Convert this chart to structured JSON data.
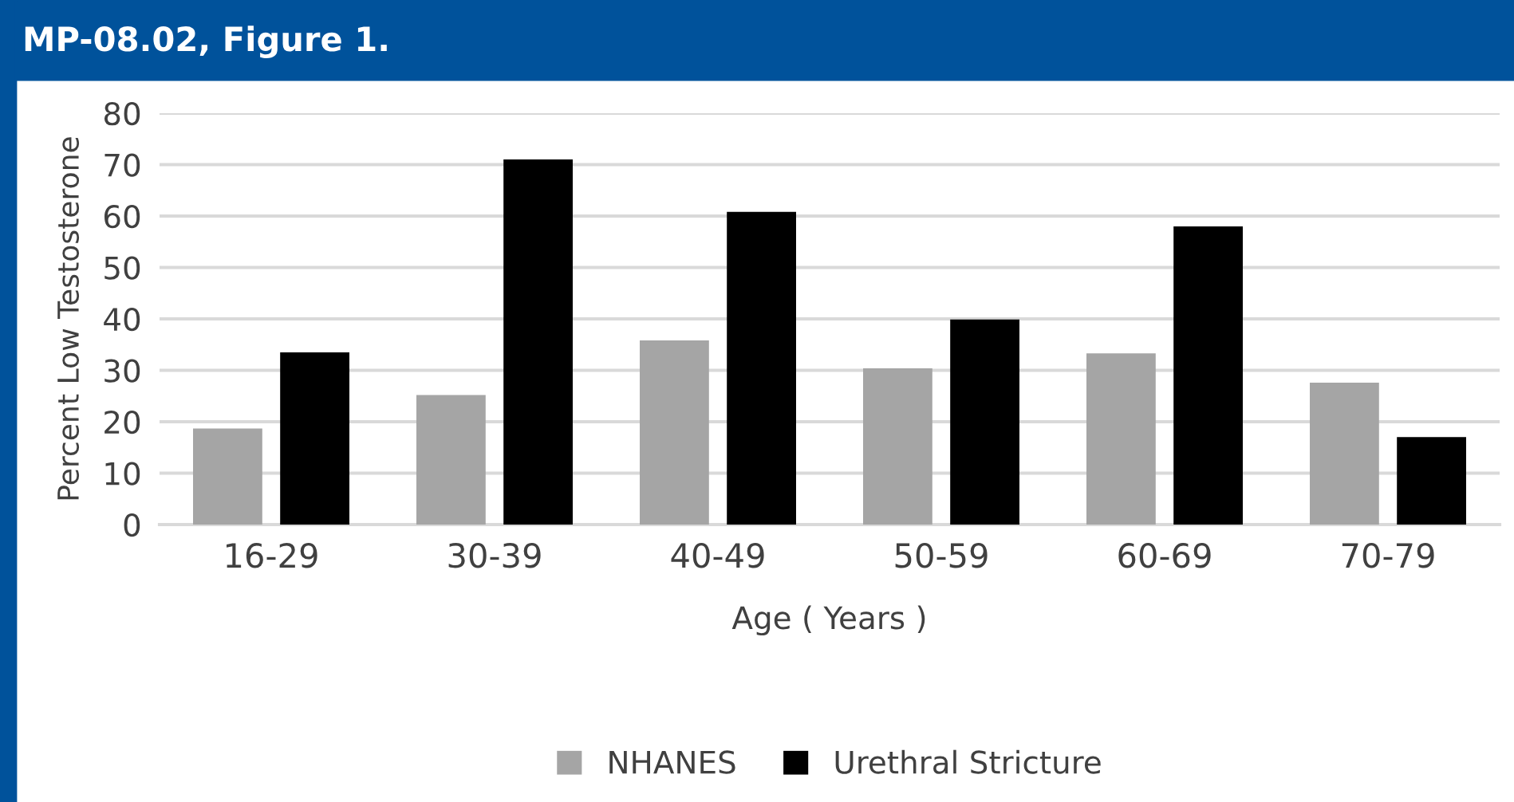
{
  "chart_data": {
    "type": "bar",
    "title": "MP-08.02, Figure 1.",
    "xlabel": "Age ( Years )",
    "ylabel": "Percent Low Testosterone",
    "categories": [
      "16-29",
      "30-39",
      "40-49",
      "50-59",
      "60-69",
      "70-79"
    ],
    "series": [
      {
        "name": "NHANES",
        "color": "#a5a5a5",
        "values": [
          18.7,
          25.2,
          35.8,
          30.4,
          33.3,
          27.6
        ]
      },
      {
        "name": "Urethral Stricture",
        "color": "#000000",
        "values": [
          33.5,
          71.0,
          60.8,
          39.9,
          58.0,
          17.0
        ]
      }
    ],
    "ylim": [
      0,
      80
    ],
    "yticks": [
      0,
      10,
      20,
      30,
      40,
      50,
      60,
      70,
      80
    ],
    "grid": "y",
    "legend": "bottom"
  }
}
